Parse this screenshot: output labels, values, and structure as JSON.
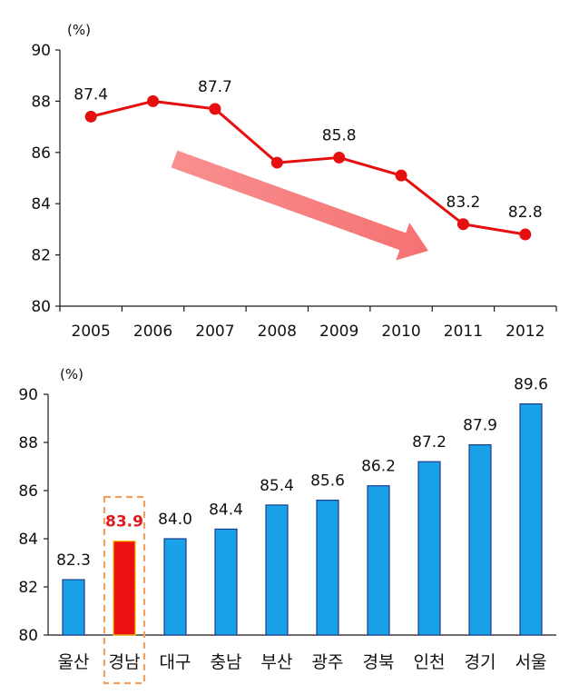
{
  "colors": {
    "line": "#e50f0f",
    "bar": "#1aa2e8",
    "bar_stroke": "#1f3b8f",
    "highlight_bar": "#ee1111",
    "highlight_bar_stroke": "#f2c200",
    "highlight_label": "#e11b1b",
    "highlight_box": "#f0a060",
    "trend_arrow": "#f77b7b",
    "axis": "#1a1a1a",
    "text": "#111111"
  },
  "chart_data": [
    {
      "type": "line",
      "title": "",
      "unit_label": "(%)",
      "xlabel": "",
      "ylabel": "(%)",
      "x": [
        "2005",
        "2006",
        "2007",
        "2008",
        "2009",
        "2010",
        "2011",
        "2012"
      ],
      "values": [
        87.4,
        88.0,
        87.7,
        85.6,
        85.8,
        85.1,
        83.2,
        82.8
      ],
      "data_labels": [
        "87.4",
        "",
        "87.7",
        "",
        "85.8",
        "",
        "83.2",
        "82.8"
      ],
      "ylim": [
        80,
        90
      ],
      "yticks": [
        "80",
        "82",
        "84",
        "86",
        "88",
        "90"
      ],
      "annotation": "decreasing-trend-arrow"
    },
    {
      "type": "bar",
      "title": "",
      "unit_label": "(%)",
      "xlabel": "",
      "ylabel": "(%)",
      "categories": [
        "울산",
        "경남",
        "대구",
        "충남",
        "부산",
        "광주",
        "경북",
        "인천",
        "경기",
        "서울"
      ],
      "values": [
        82.3,
        83.9,
        84.0,
        84.4,
        85.4,
        85.6,
        86.2,
        87.2,
        87.9,
        89.6
      ],
      "data_labels": [
        "82.3",
        "83.9",
        "84.0",
        "84.4",
        "85.4",
        "85.6",
        "86.2",
        "87.2",
        "87.9",
        "89.6"
      ],
      "highlight_index": 1,
      "ylim": [
        80,
        90
      ],
      "yticks": [
        "80",
        "82",
        "84",
        "86",
        "88",
        "90"
      ]
    }
  ]
}
